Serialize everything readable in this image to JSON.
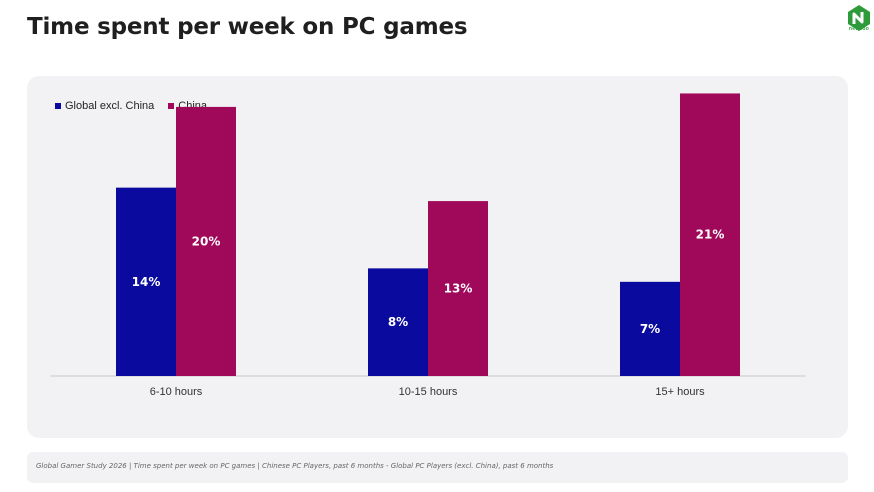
{
  "header": {
    "title": "Time spent per week on PC games",
    "logo_text": "newzoo"
  },
  "footer": {
    "source": "Global Gamer Study 2026 | Time spent per week on PC games | Chinese PC Players, past 6 months - Global PC Players (excl. China), past 6 months"
  },
  "colors": {
    "global": "#0a0a9e",
    "china": "#a0085a",
    "panel": "#f2f2f4",
    "axis": "#c8c8c8"
  },
  "chart_data": {
    "type": "bar",
    "title": "Time spent per week on PC games",
    "categories": [
      "6-10 hours",
      "10-15 hours",
      "15+ hours"
    ],
    "series": [
      {
        "name": "Global excl. China",
        "values": [
          14,
          8,
          7
        ],
        "labels": [
          "14%",
          "8%",
          "7%"
        ]
      },
      {
        "name": "China",
        "values": [
          20,
          13,
          21
        ],
        "labels": [
          "20%",
          "13%",
          "21%"
        ]
      }
    ],
    "ylim": [
      0,
      22
    ],
    "grid": false,
    "legend": "top-left"
  }
}
